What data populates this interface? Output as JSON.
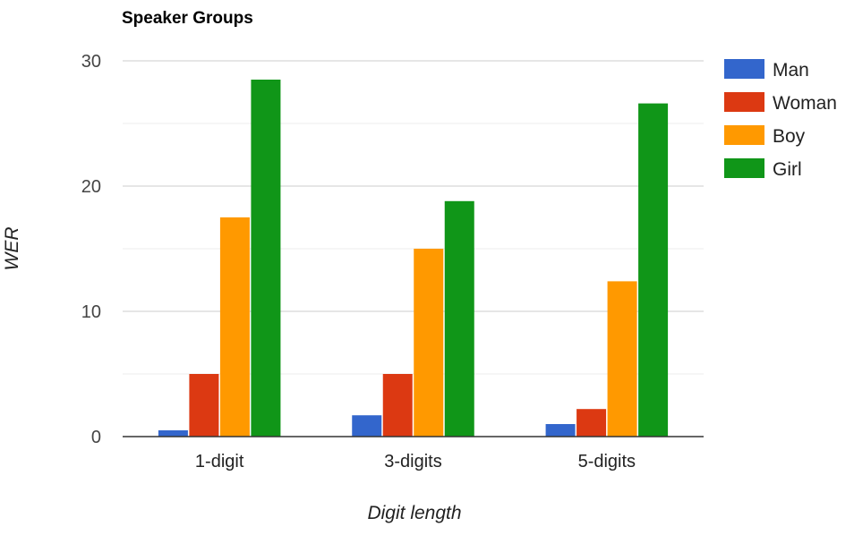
{
  "chart_data": {
    "type": "bar",
    "title": "Speaker Groups",
    "xlabel": "Digit length",
    "ylabel": "WER",
    "categories": [
      "1-digit",
      "3-digits",
      "5-digits"
    ],
    "ylim": [
      0,
      30
    ],
    "yticks": [
      0,
      10,
      20,
      30
    ],
    "minor_gridlines": true,
    "legend_position": "right",
    "series": [
      {
        "name": "Man",
        "color": "#3366cc",
        "values": [
          0.5,
          1.7,
          1.0
        ]
      },
      {
        "name": "Woman",
        "color": "#dc3912",
        "values": [
          5.0,
          5.0,
          2.2
        ]
      },
      {
        "name": "Boy",
        "color": "#ff9900",
        "values": [
          17.5,
          15.0,
          12.4
        ]
      },
      {
        "name": "Girl",
        "color": "#109618",
        "values": [
          28.5,
          18.8,
          26.6
        ]
      }
    ]
  }
}
